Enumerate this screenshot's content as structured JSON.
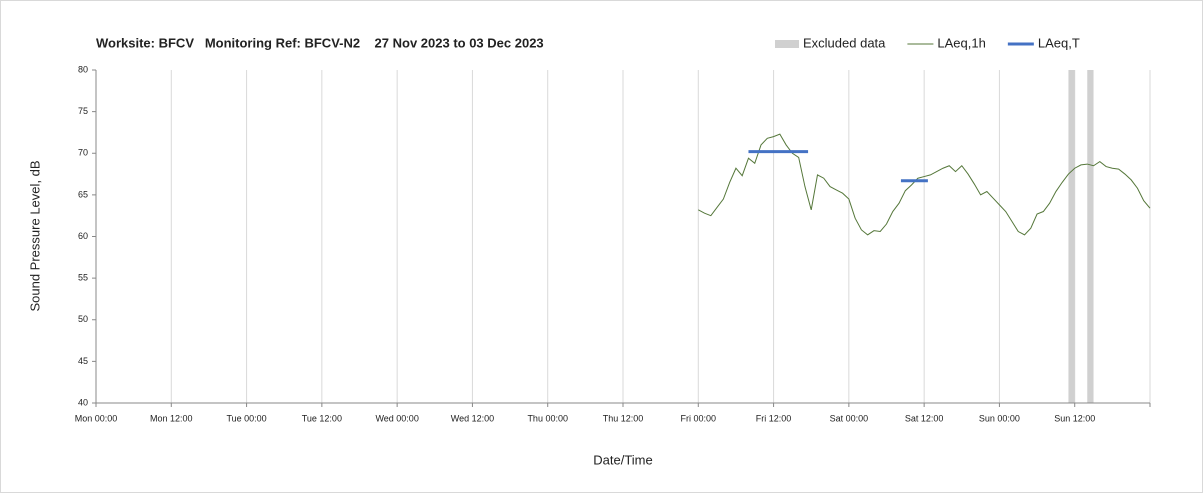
{
  "chart_data": {
    "type": "line",
    "title": "Worksite: BFCV   Monitoring Ref: BFCV-N2    27 Nov 2023 to 03 Dec 2023",
    "x_label": "Date/Time",
    "y_label": "Sound Pressure Level, dB",
    "xlim": [
      0,
      168
    ],
    "xticks": [
      {
        "value": 0,
        "label": "Mon 00:00"
      },
      {
        "value": 12,
        "label": "Mon 12:00"
      },
      {
        "value": 24,
        "label": "Tue 00:00"
      },
      {
        "value": 36,
        "label": "Tue 12:00"
      },
      {
        "value": 48,
        "label": "Wed 00:00"
      },
      {
        "value": 60,
        "label": "Wed 12:00"
      },
      {
        "value": 72,
        "label": "Thu 00:00"
      },
      {
        "value": 84,
        "label": "Thu 12:00"
      },
      {
        "value": 96,
        "label": "Fri 00:00"
      },
      {
        "value": 108,
        "label": "Fri 12:00"
      },
      {
        "value": 120,
        "label": "Sat 00:00"
      },
      {
        "value": 132,
        "label": "Sat 12:00"
      },
      {
        "value": 144,
        "label": "Sun 00:00"
      },
      {
        "value": 156,
        "label": "Sun 12:00"
      },
      {
        "value": 168,
        "label": ""
      }
    ],
    "ylim": [
      40,
      80
    ],
    "yticks": [
      40,
      45,
      50,
      55,
      60,
      65,
      70,
      75,
      80
    ],
    "grid": "x",
    "legend": "top-right",
    "excluded": {
      "name": "Excluded data",
      "color": "#d0d0d0",
      "ranges": [
        [
          155,
          156
        ],
        [
          158,
          159
        ]
      ]
    },
    "series": [
      {
        "name": "LAeq,1h",
        "color": "#55773a",
        "x": [
          96,
          97,
          98,
          99,
          100,
          101,
          102,
          103,
          104,
          105,
          106,
          107,
          108,
          109,
          110,
          111,
          112,
          113,
          114,
          115,
          116,
          117,
          118,
          119,
          120,
          121,
          122,
          123,
          124,
          125,
          126,
          127,
          128,
          129,
          130,
          131,
          132,
          133,
          134,
          135,
          136,
          137,
          138,
          139,
          140,
          141,
          142,
          143,
          144,
          145,
          146,
          147,
          148,
          149,
          150,
          151,
          152,
          153,
          154,
          155,
          156,
          157,
          158,
          159,
          160,
          161,
          162,
          163,
          164,
          165,
          166,
          167,
          168
        ],
        "values": [
          63.2,
          62.8,
          62.5,
          63.5,
          64.5,
          66.5,
          68.2,
          67.3,
          69.4,
          68.8,
          71.0,
          71.8,
          72.0,
          72.3,
          71.0,
          70.0,
          69.5,
          66.0,
          63.2,
          67.4,
          67.0,
          66.0,
          65.6,
          65.2,
          64.5,
          62.2,
          60.8,
          60.2,
          60.7,
          60.6,
          61.5,
          63.0,
          64.0,
          65.5,
          66.2,
          67.0,
          67.2,
          67.4,
          67.8,
          68.2,
          68.5,
          67.8,
          68.5,
          67.5,
          66.3,
          65.0,
          65.4,
          64.6,
          63.8,
          63.0,
          61.8,
          60.6,
          60.2,
          61.0,
          62.7,
          63.0,
          64.0,
          65.4,
          66.5,
          67.5,
          68.2,
          68.6,
          68.7,
          68.5,
          69.0,
          68.4,
          68.2,
          68.1,
          67.5,
          66.8,
          65.8,
          64.3,
          63.4
        ],
        "width": 1
      },
      {
        "name": "LAeq,T",
        "color": "#4472c4",
        "x": [
          104,
          113.5,
          null,
          128.3,
          132.6
        ],
        "values": [
          70.2,
          70.2,
          null,
          66.7,
          66.7
        ],
        "width": 3
      }
    ]
  }
}
